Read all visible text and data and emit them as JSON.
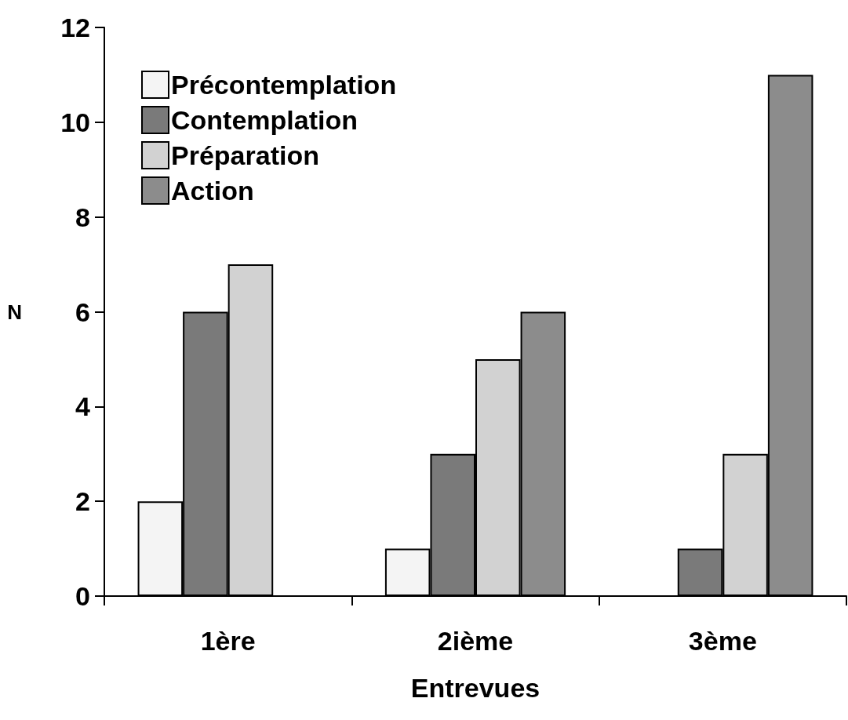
{
  "chart_data": {
    "type": "bar",
    "xlabel": "Entrevues",
    "ylabel": "N",
    "categories": [
      "1ère",
      "2ième",
      "3ème"
    ],
    "series": [
      {
        "name": "Précontemplation",
        "color": "#f4f4f4",
        "values": [
          2,
          1,
          null
        ]
      },
      {
        "name": "Contemplation",
        "color": "#7a7a7a",
        "values": [
          6,
          3,
          1
        ]
      },
      {
        "name": "Préparation",
        "color": "#d2d2d2",
        "values": [
          7,
          5,
          3
        ]
      },
      {
        "name": "Action",
        "color": "#8c8c8c",
        "values": [
          null,
          6,
          11
        ]
      }
    ],
    "ylim": [
      0,
      12
    ],
    "yticks": [
      0,
      2,
      4,
      6,
      8,
      10,
      12
    ],
    "grid": false,
    "legend": "top left"
  }
}
